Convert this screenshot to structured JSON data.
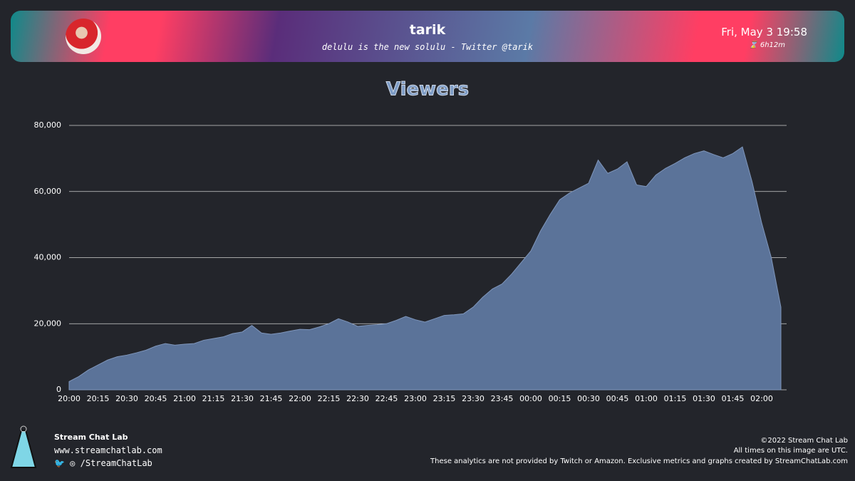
{
  "header": {
    "name": "tarik",
    "tagline": "delulu is the new solulu - Twitter @tarik",
    "date": "Fri, May 3 19:58",
    "duration": "6h12m"
  },
  "chart_data": {
    "type": "area",
    "title": "Viewers",
    "color": "#5b7399",
    "grid": true,
    "categories": [
      "20:00",
      null,
      null,
      "20:15",
      null,
      null,
      "20:30",
      null,
      null,
      "20:45",
      null,
      null,
      "21:00",
      null,
      null,
      "21:15",
      null,
      null,
      "21:30",
      null,
      null,
      "21:45",
      null,
      null,
      "22:00",
      null,
      null,
      "22:15",
      null,
      null,
      "22:30",
      null,
      null,
      "22:45",
      null,
      null,
      "23:00",
      null,
      null,
      "23:15",
      null,
      null,
      "23:30",
      null,
      null,
      "23:45",
      null,
      null,
      "00:00",
      null,
      null,
      "00:15",
      null,
      null,
      "00:30",
      null,
      null,
      "00:45",
      null,
      null,
      "01:00",
      null,
      null,
      "01:15",
      null,
      null,
      "01:30",
      null,
      null,
      "01:45",
      null,
      null,
      "02:00",
      null,
      null
    ],
    "values": [
      2500,
      4000,
      6000,
      7500,
      9000,
      10000,
      10500,
      11200,
      12000,
      13200,
      14000,
      13500,
      13800,
      14000,
      15000,
      15500,
      16000,
      17000,
      17500,
      19500,
      17200,
      16800,
      17200,
      17800,
      18300,
      18200,
      19000,
      20000,
      21500,
      20500,
      19200,
      19500,
      19700,
      20000,
      21000,
      22200,
      21200,
      20500,
      21500,
      22500,
      22700,
      23000,
      25000,
      28000,
      30500,
      32000,
      35000,
      38500,
      42000,
      48000,
      53000,
      57500,
      59500,
      61000,
      62500,
      69500,
      65500,
      66800,
      69000,
      62000,
      61500,
      65000,
      67000,
      68500,
      70200,
      71500,
      72300,
      71200,
      70200,
      71500,
      73500,
      63000,
      50500,
      40000,
      25000
    ],
    "ylim": [
      0,
      80000
    ],
    "yticks": [
      0,
      {
        "value": 20000,
        "label": "20,000"
      },
      {
        "value": 40000,
        "label": "40,000"
      },
      {
        "value": 60000,
        "label": "60,000"
      },
      {
        "value": 80000,
        "label": "80,000"
      }
    ]
  },
  "footer": {
    "brand": "Stream Chat Lab",
    "website": "www.streamchatlab.com",
    "social": "/StreamChatLab",
    "copyright": "©2022 Stream Chat Lab",
    "timezone_note": "All times on this image are UTC.",
    "disclaimer": "These analytics are not provided by Twitch or Amazon. Exclusive metrics and graphs created by StreamChatLab.com"
  }
}
